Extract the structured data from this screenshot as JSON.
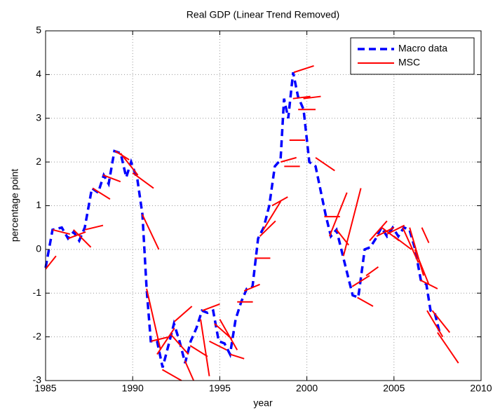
{
  "chart_data": {
    "type": "line",
    "title": "Real GDP (Linear Trend Removed)",
    "x_label": "year",
    "y_label": "percentage point",
    "xlim": [
      1985,
      2010
    ],
    "xticks": [
      1985,
      1990,
      1995,
      2000,
      2005,
      2010
    ],
    "ylim": [
      -3,
      5
    ],
    "yticks": [
      -3,
      -2,
      -1,
      0,
      1,
      2,
      3,
      4,
      5
    ],
    "grid": true,
    "legend": "upper right",
    "series": [
      {
        "name": "Macro data",
        "color": "#0000ff",
        "linestyle": "dashed",
        "x": [
          1985.0,
          1985.4,
          1985.93,
          1986.29,
          1986.61,
          1986.93,
          1987.25,
          1987.66,
          1988.02,
          1988.34,
          1988.62,
          1988.95,
          1989.31,
          1989.63,
          1989.91,
          1990.27,
          1990.56,
          1990.8,
          1991.04,
          1991.4,
          1991.72,
          1992.05,
          1992.37,
          1992.69,
          1993.01,
          1993.33,
          1993.66,
          1993.98,
          1994.3,
          1994.62,
          1994.94,
          1995.27,
          1995.59,
          1995.91,
          1996.23,
          1996.55,
          1996.88,
          1997.2,
          1997.52,
          1997.84,
          1998.16,
          1998.49,
          1998.69,
          1998.93,
          1999.21,
          1999.49,
          1999.81,
          2000.14,
          2000.5,
          2001.1,
          2001.38,
          2001.7,
          2002.1,
          2002.63,
          2002.95,
          2003.32,
          2003.64,
          2003.96,
          2004.28,
          2004.6,
          2004.93,
          2005.25,
          2005.57,
          2005.89,
          2006.22,
          2006.54,
          2006.86,
          2007.1,
          2007.34,
          2007.62
        ],
        "values": [
          -0.42,
          0.45,
          0.5,
          0.25,
          0.4,
          0.2,
          0.5,
          1.4,
          1.3,
          1.7,
          1.5,
          2.25,
          2.2,
          1.65,
          2.0,
          1.6,
          0.8,
          -0.9,
          -2.1,
          -2.1,
          -2.7,
          -2.2,
          -1.7,
          -2.1,
          -2.6,
          -2.1,
          -1.8,
          -1.4,
          -1.45,
          -1.4,
          -2.1,
          -2.15,
          -2.4,
          -1.6,
          -1.2,
          -0.9,
          -0.85,
          0.25,
          0.5,
          1.0,
          1.9,
          2.05,
          3.45,
          3.0,
          4.05,
          3.5,
          3.2,
          2.0,
          1.9,
          0.75,
          0.3,
          0.45,
          -0.2,
          -1.05,
          -1.1,
          0.0,
          0.05,
          0.25,
          0.5,
          0.3,
          0.5,
          0.3,
          0.5,
          0.45,
          0.0,
          -0.7,
          -0.8,
          -1.4,
          -1.45,
          -1.9
        ]
      },
      {
        "name": "MSC",
        "color": "#ff0000",
        "linestyle": "solid",
        "x": [
          1985.0,
          1985.6,
          null,
          1985.4,
          1986.4,
          null,
          1986.3,
          1987.3,
          null,
          1986.6,
          1987.6,
          null,
          1987.25,
          1988.3,
          null,
          1987.7,
          1988.7,
          null,
          1988.3,
          1989.3,
          null,
          1989.0,
          1989.8,
          null,
          1989.3,
          1990.3,
          null,
          1990.0,
          1991.2,
          null,
          1990.55,
          1991.5,
          null,
          1990.8,
          1991.6,
          null,
          1991.05,
          1992.1,
          null,
          1991.4,
          1992.4,
          null,
          1991.7,
          1992.8,
          null,
          1992.2,
          1993.2,
          null,
          1992.4,
          1993.4,
          null,
          1993.0,
          1993.5,
          null,
          1993.3,
          1994.3,
          null,
          1993.9,
          1994.4,
          null,
          1994.0,
          1995.0,
          null,
          1994.4,
          1995.4,
          null,
          1994.7,
          1995.7,
          null,
          1995.0,
          1996.0,
          null,
          1995.6,
          1996.4,
          null,
          1996.0,
          1996.9,
          null,
          1996.4,
          1997.3,
          null,
          1997.0,
          1997.9,
          null,
          1997.3,
          1998.2,
          null,
          1997.5,
          1998.5,
          null,
          1998.0,
          1998.9,
          null,
          1998.5,
          1999.4,
          null,
          1998.7,
          1999.6,
          null,
          1999.0,
          1999.9,
          null,
          1999.2,
          2000.2,
          null,
          1999.5,
          2000.5,
          null,
          1999.25,
          2000.4,
          null,
          1999.8,
          2000.8,
          null,
          2000.5,
          2001.6,
          null,
          2001.0,
          2001.9,
          null,
          2001.3,
          2002.3,
          null,
          2001.7,
          2002.4,
          null,
          2002.1,
          2003.1,
          null,
          2002.6,
          2003.6,
          null,
          2002.9,
          2003.8,
          null,
          2003.4,
          2004.1,
          null,
          2003.6,
          2004.6,
          null,
          2004.0,
          2005.0,
          null,
          2004.3,
          2005.3,
          null,
          2004.6,
          2005.6,
          null,
          2005.0,
          2006.0,
          null,
          2005.5,
          2006.4,
          null,
          2005.9,
          2006.7,
          null,
          2006.6,
          2007.0,
          null,
          2006.2,
          2007.0,
          null,
          2006.5,
          2007.5,
          null,
          2006.9,
          2007.8,
          null,
          2007.2,
          2008.2,
          null,
          2007.5,
          2008.7
        ],
        "values": [
          -0.45,
          -0.15,
          null,
          0.45,
          0.35,
          null,
          0.25,
          0.4,
          null,
          0.45,
          0.05,
          null,
          0.45,
          0.55,
          null,
          1.4,
          1.15,
          null,
          1.7,
          1.55,
          null,
          2.25,
          2.05,
          null,
          2.2,
          1.7,
          null,
          1.75,
          1.4,
          null,
          0.8,
          0.0,
          null,
          -0.9,
          -2.3,
          null,
          -2.1,
          -2.0,
          null,
          -2.4,
          -1.8,
          null,
          -2.75,
          -3.0,
          null,
          -1.95,
          -2.4,
          null,
          -1.65,
          -1.3,
          null,
          -2.55,
          -3.0,
          null,
          -2.2,
          -2.45,
          null,
          -1.6,
          -2.9,
          null,
          -1.4,
          -1.25,
          null,
          -2.1,
          -2.3,
          null,
          -1.7,
          -2.05,
          null,
          -1.6,
          -2.3,
          null,
          -2.4,
          -2.5,
          null,
          -1.2,
          -1.2,
          null,
          -0.95,
          -0.8,
          null,
          -0.2,
          -0.2,
          null,
          0.3,
          0.65,
          null,
          0.45,
          1.1,
          null,
          1.0,
          1.2,
          null,
          2.0,
          2.1,
          null,
          1.9,
          1.9,
          null,
          2.5,
          2.5,
          null,
          3.45,
          3.5,
          null,
          3.2,
          3.2,
          null,
          4.05,
          4.2,
          null,
          3.45,
          3.5,
          null,
          2.1,
          1.8,
          null,
          0.75,
          0.75,
          null,
          0.3,
          1.3,
          null,
          0.45,
          0.1,
          null,
          -0.15,
          1.4,
          null,
          -0.85,
          -0.6,
          null,
          -1.1,
          -1.3,
          null,
          -0.6,
          -0.4,
          null,
          0.2,
          0.65,
          null,
          0.3,
          0.5,
          null,
          0.5,
          0.2,
          null,
          0.35,
          0.55,
          null,
          0.3,
          0.0,
          null,
          0.5,
          -0.3,
          null,
          0.5,
          -0.6,
          null,
          0.5,
          0.15,
          null,
          0.0,
          -0.8,
          null,
          -0.7,
          -0.9,
          null,
          -1.4,
          -2.0,
          null,
          -1.4,
          -1.9,
          null,
          -1.9,
          -2.6
        ]
      }
    ]
  }
}
